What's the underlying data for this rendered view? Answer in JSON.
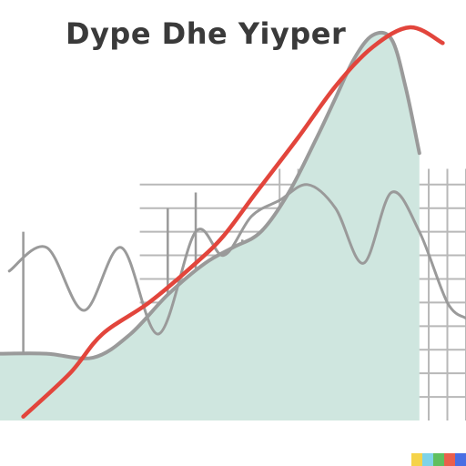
{
  "chart_data": {
    "type": "area",
    "title": "Dype Dhe Yiyper",
    "xlabel": "",
    "ylabel": "",
    "grid": true,
    "legend": "none",
    "xlim": [
      0,
      100
    ],
    "ylim": [
      0,
      100
    ],
    "series": [
      {
        "kind": "area",
        "x": [
          0,
          10,
          20,
          28,
          36,
          44,
          50,
          56,
          62,
          68,
          72,
          76,
          80,
          84,
          87,
          90
        ],
        "y": [
          17,
          17,
          16,
          22,
          32,
          40,
          44,
          48,
          58,
          72,
          82,
          92,
          98,
          97,
          85,
          68
        ]
      },
      {
        "kind": "line",
        "x": [
          2,
          10,
          18,
          26,
          34,
          42,
          48,
          54,
          60,
          66,
          72,
          78,
          84,
          90,
          96,
          100
        ],
        "y": [
          38,
          44,
          28,
          44,
          22,
          48,
          42,
          52,
          56,
          60,
          54,
          40,
          58,
          48,
          30,
          26
        ]
      },
      {
        "kind": "line",
        "x": [
          5,
          15,
          22,
          32,
          42,
          48,
          55,
          64,
          72,
          80,
          88,
          95
        ],
        "y": [
          1,
          12,
          22,
          30,
          40,
          47,
          58,
          72,
          85,
          95,
          100,
          96
        ]
      }
    ],
    "vertical_spikes": [
      {
        "x": 5,
        "y": 48
      },
      {
        "x": 36,
        "y": 54
      },
      {
        "x": 42,
        "y": 58
      },
      {
        "x": 52,
        "y": 46
      }
    ],
    "colors": {
      "area_fill": "#cfe6df",
      "outline": "#9a9a9a",
      "highlight": "#e2453c",
      "grid": "#b8b8b8",
      "title": "#3a3a3a"
    }
  }
}
